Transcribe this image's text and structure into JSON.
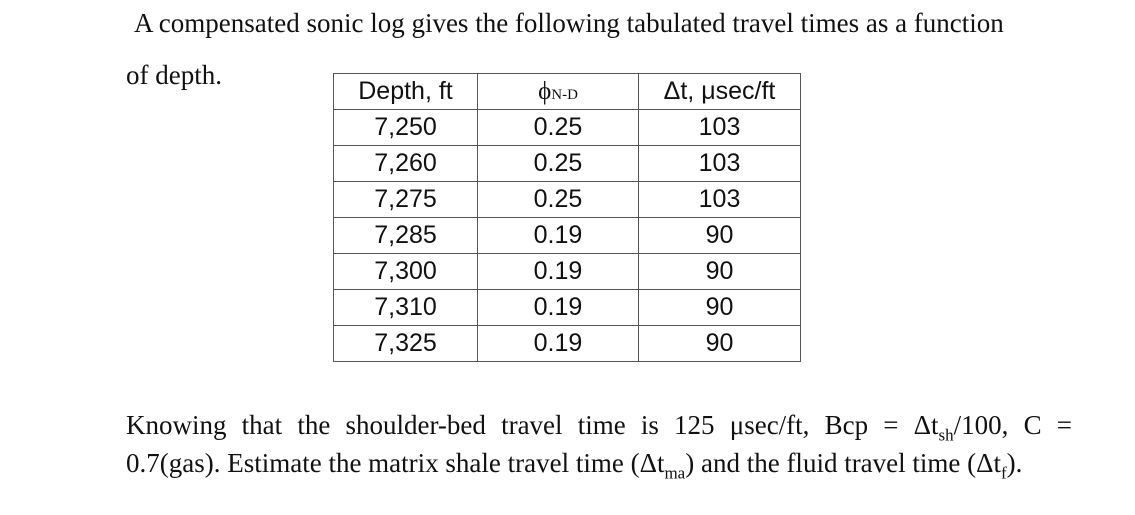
{
  "intro": {
    "line1": "A compensated sonic log gives the following tabulated travel times as a function",
    "line2": "of depth."
  },
  "table": {
    "headers": {
      "depth": "Depth, ft",
      "phi_symbol": "ϕ",
      "phi_sub": "N-D",
      "dt": "Δt, μsec/ft"
    },
    "rows": [
      {
        "depth": "7,250",
        "phi": "0.25",
        "dt": "103"
      },
      {
        "depth": "7,260",
        "phi": "0.25",
        "dt": "103"
      },
      {
        "depth": "7,275",
        "phi": "0.25",
        "dt": "103"
      },
      {
        "depth": "7,285",
        "phi": "0.19",
        "dt": "90"
      },
      {
        "depth": "7,300",
        "phi": "0.19",
        "dt": "90"
      },
      {
        "depth": "7,310",
        "phi": "0.19",
        "dt": "90"
      },
      {
        "depth": "7,325",
        "phi": "0.19",
        "dt": "90"
      }
    ]
  },
  "question": {
    "line1_a": "Knowing that the shoulder-bed travel time is 125 μsec/ft, Bcp = Δt",
    "line1_sub": "sh",
    "line1_b": "/100, C =",
    "line2_a": "0.7(gas). Estimate the matrix shale travel time (Δt",
    "line2_sub1": "ma",
    "line2_b": ") and the fluid travel time (Δt",
    "line2_sub2": "f",
    "line2_c": ")."
  }
}
